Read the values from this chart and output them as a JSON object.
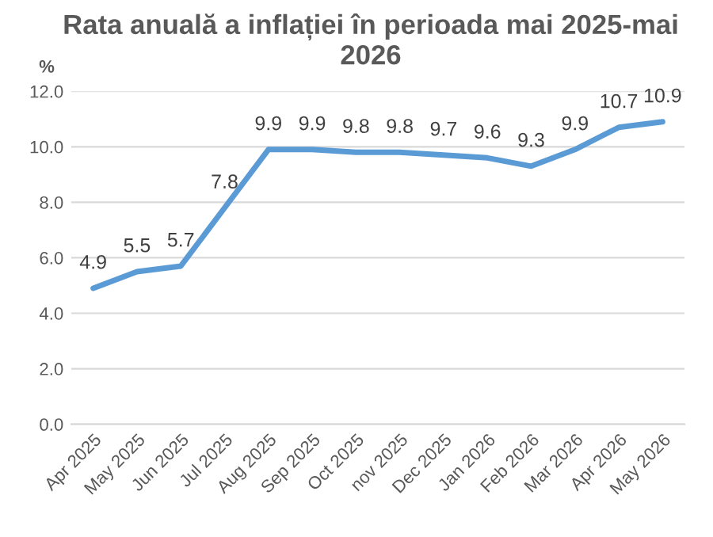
{
  "chart_data": {
    "type": "line",
    "title": "Rata anuală a inflației în perioada mai 2025-mai 2026",
    "ylabel": "%",
    "categories": [
      "Apr 2025",
      "May 2025",
      "Jun 2025",
      "Jul 2025",
      "Aug 2025",
      "Sep 2025",
      "Oct 2025",
      "nov 2025",
      "Dec 2025",
      "Jan 2026",
      "Feb 2026",
      "Mar 2026",
      "Apr 2026",
      "May 2026"
    ],
    "series": [
      {
        "color": "#5b9bd5",
        "values": [
          4.9,
          5.5,
          5.7,
          7.8,
          9.9,
          9.9,
          9.8,
          9.8,
          9.7,
          9.6,
          9.3,
          9.9,
          10.7,
          10.9
        ]
      }
    ],
    "ylim": [
      0,
      12
    ],
    "yticks": [
      {
        "value": 0,
        "label": "0.0"
      },
      {
        "value": 2,
        "label": "2.0"
      },
      {
        "value": 4,
        "label": "4.0"
      },
      {
        "value": 6,
        "label": "6.0"
      },
      {
        "value": 8,
        "label": "8.0"
      },
      {
        "value": 10,
        "label": "10.0"
      },
      {
        "value": 12,
        "label": "12.0"
      }
    ],
    "grid": "y",
    "data_labels": true,
    "marker": "none",
    "line_style": "solid"
  }
}
